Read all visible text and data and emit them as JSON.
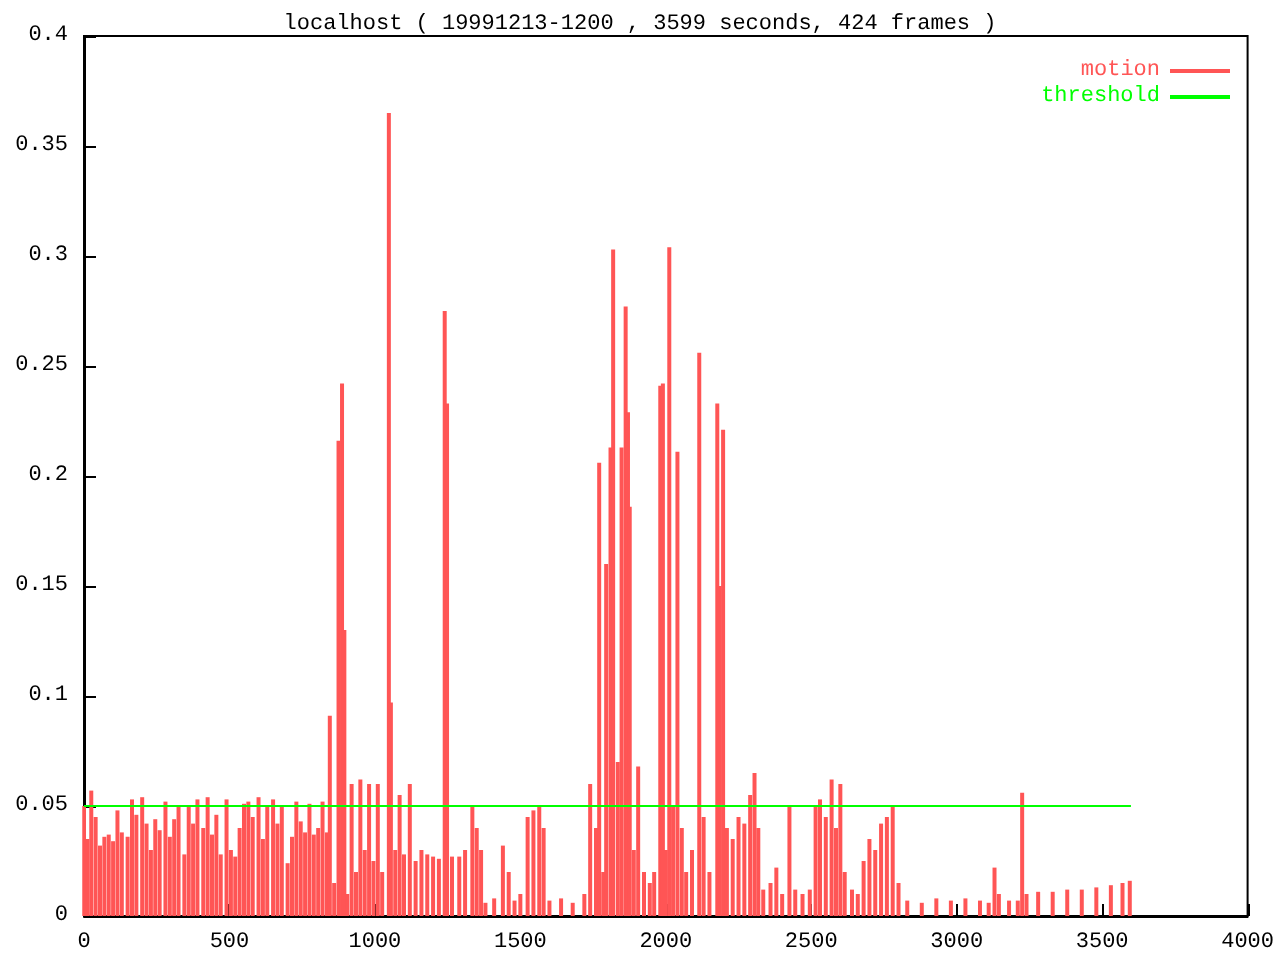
{
  "chart_data": {
    "type": "bar",
    "title": "localhost ( 19991213-1200 , 3599 seconds, 424 frames )",
    "xlim": [
      0,
      4000
    ],
    "xticks": [
      0,
      500,
      1000,
      1500,
      2000,
      2500,
      3000,
      3500,
      4000
    ],
    "ylim": [
      0,
      0.4
    ],
    "yticks": [
      0,
      0.05,
      0.1,
      0.15,
      0.2,
      0.25,
      0.3,
      0.35,
      0.4
    ],
    "grid": false,
    "legend": "top right",
    "series": [
      {
        "name": "motion",
        "color": "#ff5555",
        "x": [
          0,
          12,
          25,
          40,
          55,
          70,
          85,
          100,
          115,
          130,
          150,
          165,
          180,
          200,
          215,
          230,
          245,
          260,
          280,
          295,
          310,
          325,
          345,
          360,
          375,
          390,
          410,
          425,
          440,
          455,
          470,
          490,
          505,
          520,
          535,
          550,
          565,
          580,
          600,
          615,
          630,
          650,
          665,
          680,
          700,
          715,
          730,
          745,
          760,
          775,
          790,
          805,
          820,
          835,
          845,
          860,
          875,
          887,
          895,
          905,
          920,
          935,
          950,
          965,
          980,
          995,
          1010,
          1025,
          1048,
          1055,
          1070,
          1085,
          1100,
          1120,
          1140,
          1160,
          1180,
          1200,
          1220,
          1240,
          1248,
          1265,
          1290,
          1310,
          1335,
          1350,
          1365,
          1380,
          1410,
          1440,
          1460,
          1480,
          1500,
          1525,
          1545,
          1565,
          1580,
          1600,
          1640,
          1680,
          1720,
          1740,
          1760,
          1771,
          1785,
          1795,
          1810,
          1819,
          1835,
          1848,
          1862,
          1870,
          1876,
          1890,
          1905,
          1925,
          1945,
          1960,
          1981,
          1990,
          2000,
          2012,
          2025,
          2040,
          2055,
          2070,
          2090,
          2115,
          2130,
          2150,
          2177,
          2185,
          2197,
          2210,
          2230,
          2250,
          2270,
          2290,
          2305,
          2318,
          2335,
          2360,
          2380,
          2400,
          2425,
          2445,
          2470,
          2495,
          2515,
          2530,
          2550,
          2570,
          2585,
          2600,
          2615,
          2640,
          2660,
          2680,
          2700,
          2720,
          2740,
          2760,
          2780,
          2800,
          2830,
          2880,
          2930,
          2980,
          3030,
          3080,
          3110,
          3130,
          3145,
          3180,
          3210,
          3225,
          3240,
          3280,
          3330,
          3380,
          3430,
          3480,
          3530,
          3570,
          3595
        ],
        "values": [
          0.05,
          0.035,
          0.057,
          0.045,
          0.032,
          0.036,
          0.037,
          0.034,
          0.048,
          0.038,
          0.036,
          0.053,
          0.046,
          0.054,
          0.042,
          0.03,
          0.044,
          0.039,
          0.052,
          0.036,
          0.044,
          0.05,
          0.028,
          0.05,
          0.042,
          0.053,
          0.04,
          0.054,
          0.037,
          0.046,
          0.028,
          0.053,
          0.03,
          0.027,
          0.04,
          0.051,
          0.052,
          0.045,
          0.054,
          0.035,
          0.05,
          0.053,
          0.042,
          0.05,
          0.024,
          0.036,
          0.052,
          0.043,
          0.038,
          0.051,
          0.037,
          0.04,
          0.052,
          0.038,
          0.091,
          0.015,
          0.216,
          0.242,
          0.13,
          0.01,
          0.06,
          0.02,
          0.062,
          0.03,
          0.06,
          0.025,
          0.06,
          0.02,
          0.365,
          0.097,
          0.03,
          0.055,
          0.028,
          0.06,
          0.025,
          0.03,
          0.028,
          0.027,
          0.026,
          0.275,
          0.233,
          0.027,
          0.027,
          0.03,
          0.05,
          0.04,
          0.03,
          0.006,
          0.008,
          0.032,
          0.02,
          0.007,
          0.01,
          0.045,
          0.048,
          0.05,
          0.04,
          0.007,
          0.008,
          0.006,
          0.01,
          0.06,
          0.04,
          0.206,
          0.02,
          0.16,
          0.213,
          0.303,
          0.07,
          0.213,
          0.277,
          0.229,
          0.186,
          0.03,
          0.068,
          0.02,
          0.015,
          0.02,
          0.241,
          0.242,
          0.03,
          0.304,
          0.05,
          0.211,
          0.04,
          0.02,
          0.03,
          0.256,
          0.045,
          0.02,
          0.233,
          0.15,
          0.221,
          0.04,
          0.035,
          0.045,
          0.042,
          0.055,
          0.065,
          0.04,
          0.012,
          0.015,
          0.022,
          0.01,
          0.05,
          0.012,
          0.01,
          0.012,
          0.05,
          0.053,
          0.045,
          0.062,
          0.04,
          0.06,
          0.02,
          0.012,
          0.01,
          0.025,
          0.035,
          0.03,
          0.042,
          0.045,
          0.05,
          0.015,
          0.007,
          0.006,
          0.008,
          0.007,
          0.008,
          0.007,
          0.006,
          0.022,
          0.01,
          0.007,
          0.007,
          0.056,
          0.01,
          0.011,
          0.011,
          0.012,
          0.012,
          0.013,
          0.014,
          0.015,
          0.016
        ]
      },
      {
        "name": "threshold",
        "type": "line",
        "color": "#00ff00",
        "marker": "none",
        "line_style": "solid",
        "x": [
          0,
          3599
        ],
        "values": [
          0.05,
          0.05
        ]
      }
    ]
  }
}
